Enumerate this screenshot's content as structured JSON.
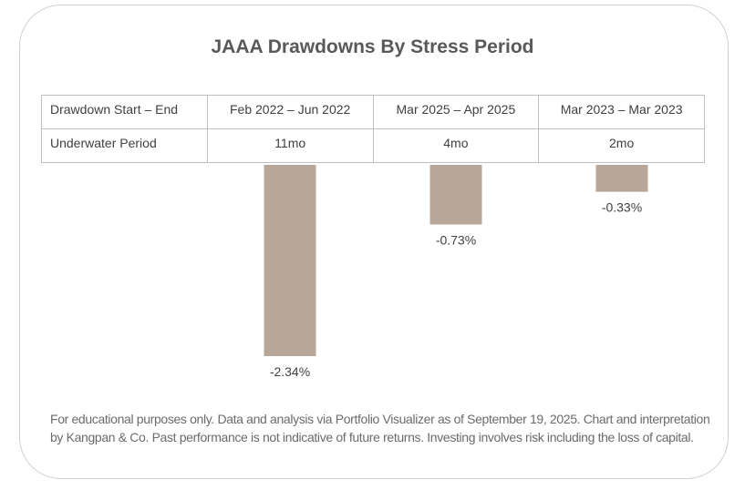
{
  "title": "JAAA Drawdowns By Stress Period",
  "table": {
    "row_headers": [
      "Drawdown Start – End",
      "Underwater Period"
    ],
    "periods": [
      "Feb 2022 – Jun 2022",
      "Mar 2025 – Apr 2025",
      "Mar 2023 – Mar 2023"
    ],
    "underwater": [
      "11mo",
      "4mo",
      "2mo"
    ]
  },
  "footnote": "For educational purposes only. Data and analysis via Portfolio Visualizer as of September 19, 2025. Chart and interpretation by Kangpan & Co. Past performance is not indicative of future returns. Investing involves risk including the loss of capital.",
  "colors": {
    "bar": "#b8a699",
    "title": "#595959",
    "border": "#bfbfbf"
  },
  "chart_data": {
    "type": "bar",
    "title": "JAAA Drawdowns By Stress Period",
    "categories": [
      "Feb 2022 – Jun 2022",
      "Mar 2025 – Apr 2025",
      "Mar 2023 – Mar 2023"
    ],
    "values": [
      -2.34,
      -0.73,
      -0.33
    ],
    "data_labels": [
      "-2.34%",
      "-0.73%",
      "-0.33%"
    ],
    "unit": "%",
    "xlabel": "",
    "ylabel": "",
    "ylim": [
      -2.34,
      0
    ],
    "grid": false,
    "legend": "none"
  }
}
